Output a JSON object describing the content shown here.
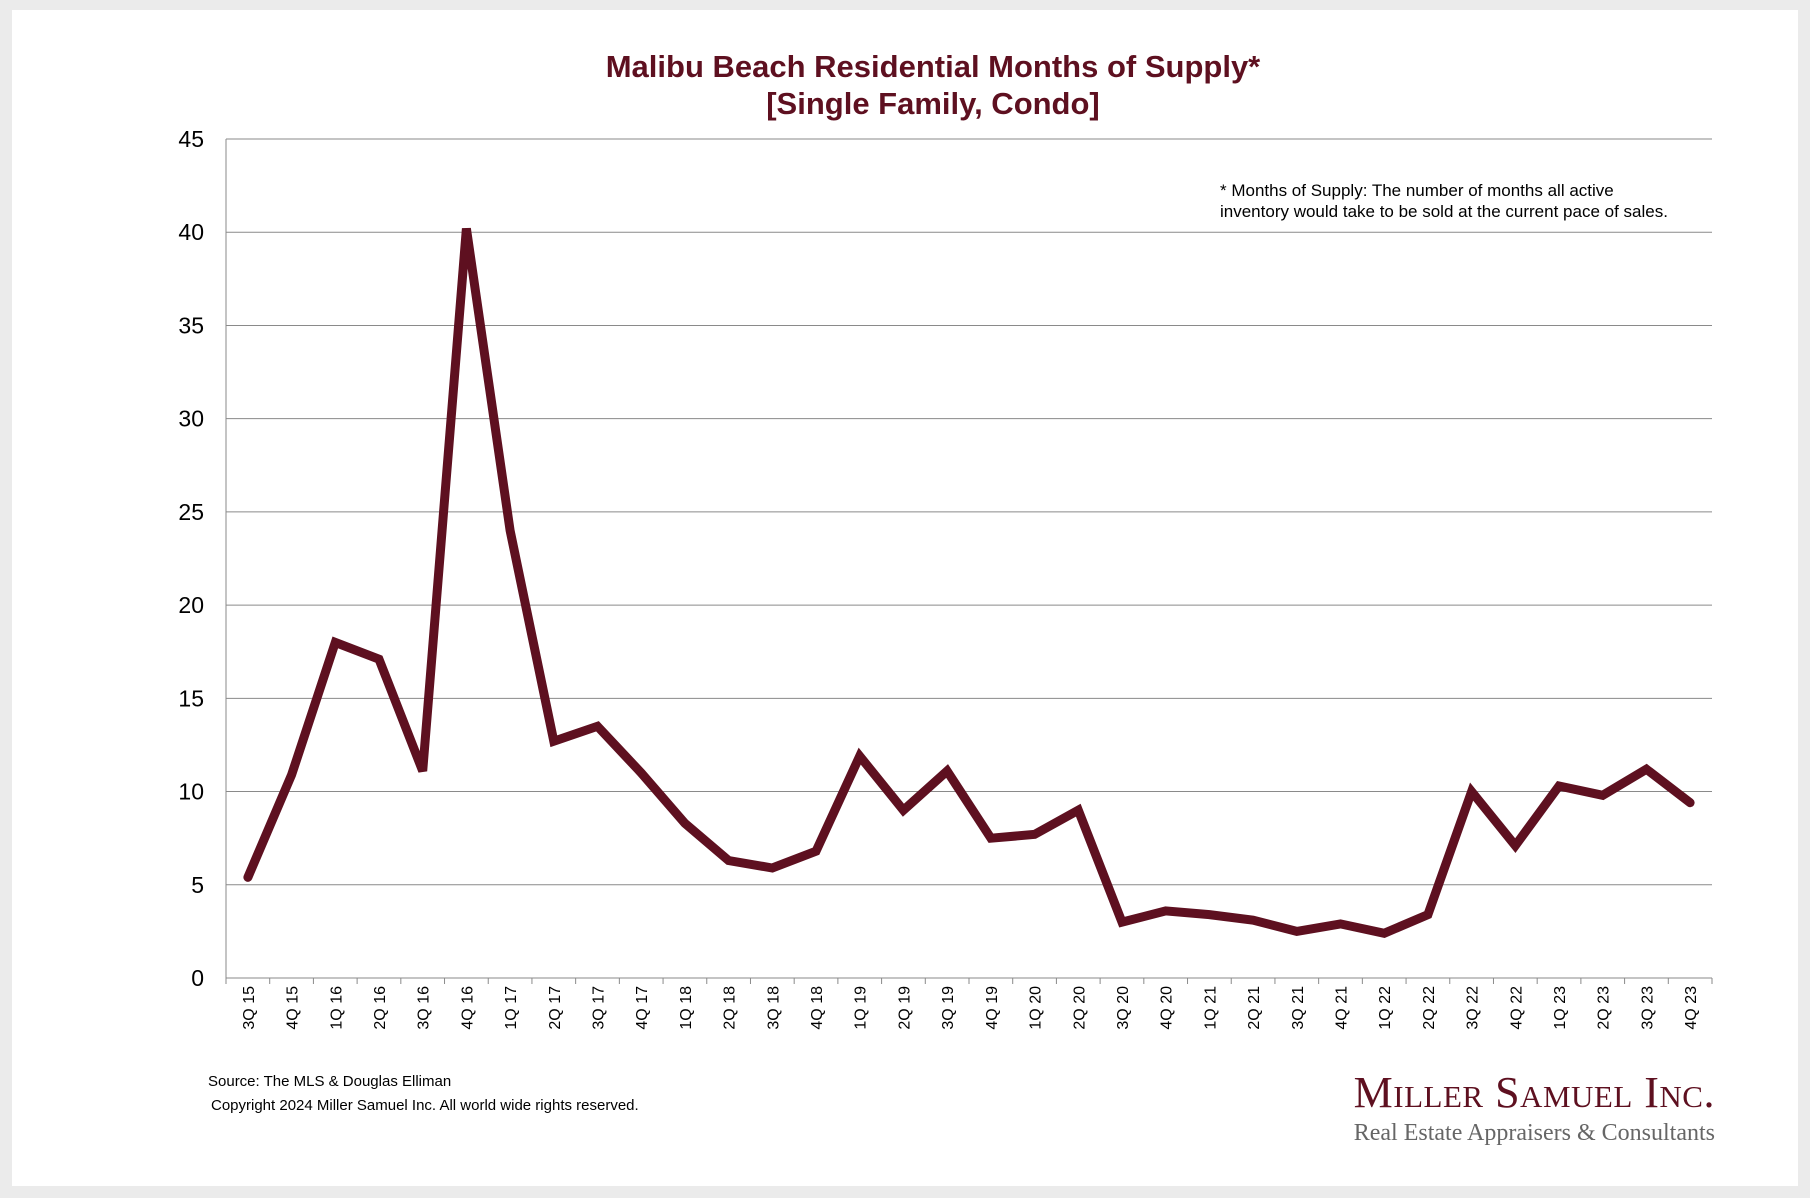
{
  "chart_data": {
    "type": "line",
    "title_line1": "Malibu Beach Residential Months of Supply*",
    "title_line2": "[Single Family, Condo]",
    "note_line1": "* Months of Supply: The number of months all active",
    "note_line2": "inventory would take to be sold at the current pace of sales.",
    "xlabel": "",
    "ylabel": "",
    "ylim": [
      0,
      45
    ],
    "yticks": [
      0,
      5,
      10,
      15,
      20,
      25,
      30,
      35,
      40,
      45
    ],
    "grid": true,
    "line_color": "#5e1020",
    "categories": [
      "3Q 15",
      "4Q 15",
      "1Q 16",
      "2Q 16",
      "3Q 16",
      "4Q 16",
      "1Q 17",
      "2Q 17",
      "3Q 17",
      "4Q 17",
      "1Q 18",
      "2Q 18",
      "3Q 18",
      "4Q 18",
      "1Q 19",
      "2Q 19",
      "3Q 19",
      "4Q 19",
      "1Q 20",
      "2Q 20",
      "3Q 20",
      "4Q 20",
      "1Q 21",
      "2Q 21",
      "3Q 21",
      "4Q 21",
      "1Q 22",
      "2Q 22",
      "3Q 22",
      "4Q 22",
      "1Q 23",
      "2Q 23",
      "3Q 23",
      "4Q 23"
    ],
    "series": [
      {
        "name": "Months of Supply",
        "values": [
          5.4,
          10.9,
          18.0,
          17.1,
          11.1,
          40.2,
          24.0,
          12.7,
          13.5,
          11.0,
          8.3,
          6.3,
          5.9,
          6.8,
          11.9,
          9.0,
          11.1,
          7.5,
          7.7,
          9.0,
          3.0,
          3.6,
          3.4,
          3.1,
          2.5,
          2.9,
          2.4,
          3.4,
          10.0,
          7.1,
          10.3,
          9.8,
          11.2,
          9.4
        ]
      }
    ]
  },
  "footer": {
    "source": "Source: The MLS & Douglas Elliman",
    "copyright": "Copyright 2024 Miller Samuel Inc.  All world wide rights reserved."
  },
  "logo": {
    "name": "Miller Samuel Inc.",
    "tagline": "Real Estate Appraisers & Consultants",
    "color": "#5e1020"
  }
}
